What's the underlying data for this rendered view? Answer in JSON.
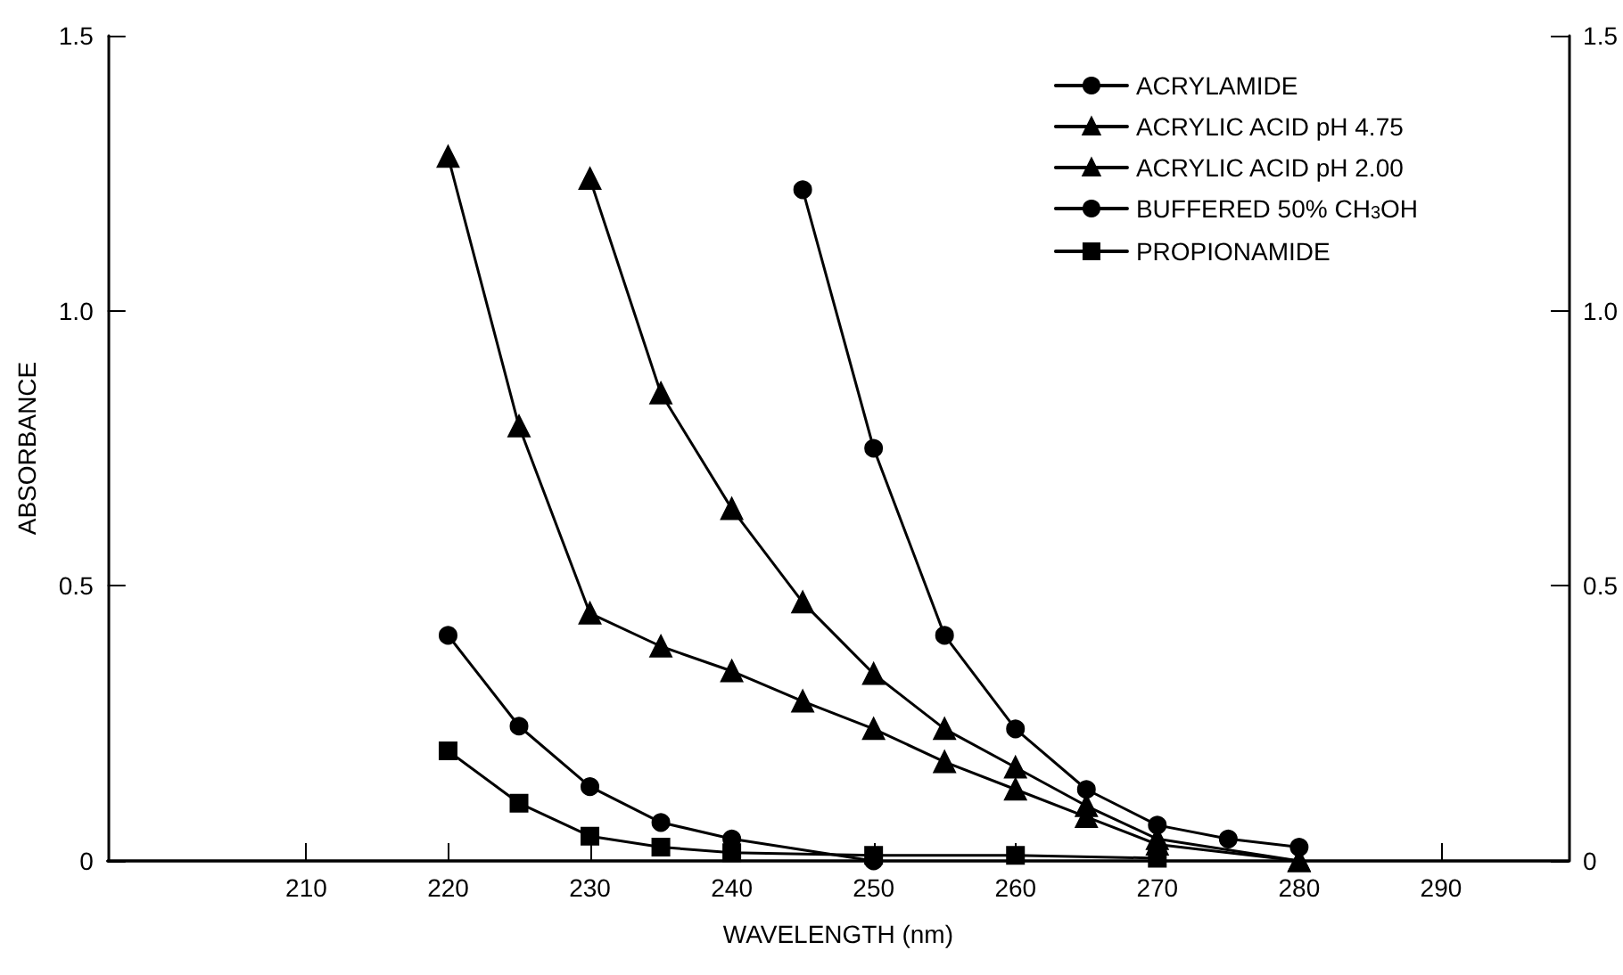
{
  "chart_data": {
    "type": "line",
    "xlabel": "WAVELENGTH (nm)",
    "ylabel": "ABSORBANCE",
    "xlim": [
      196,
      299
    ],
    "xticks": [
      210,
      220,
      230,
      240,
      250,
      260,
      270,
      280,
      290
    ],
    "ylim": [
      0,
      1.5
    ],
    "yticks": [
      0,
      {
        "value": 0.5,
        "label": "0.5"
      },
      {
        "value": 1,
        "label": "1.0"
      },
      1.5
    ],
    "y2lim": [
      0,
      1.5
    ],
    "y2ticks": [
      0,
      {
        "value": 0.5,
        "label": "0.5"
      },
      {
        "value": 1,
        "label": "1.0"
      },
      1.5
    ],
    "grid": false,
    "legend": "top right",
    "line_style": "solid",
    "series": [
      {
        "name": "ACRYLAMIDE",
        "color": "#000000",
        "marker": "circle",
        "x": [
          245,
          250,
          255,
          260,
          265,
          270,
          275,
          280
        ],
        "values": [
          1.22,
          0.75,
          0.41,
          0.24,
          0.13,
          0.065,
          0.04,
          0.025
        ]
      },
      {
        "name": "ACRYLIC ACID pH 4.75",
        "color": "#000000",
        "marker": "triangle",
        "x": [
          230,
          235,
          240,
          245,
          250,
          255,
          260,
          265,
          270,
          280
        ],
        "values": [
          1.24,
          0.85,
          0.64,
          0.47,
          0.34,
          0.24,
          0.17,
          0.1,
          0.04,
          0
        ]
      },
      {
        "name": "ACRYLIC ACID pH 2.00",
        "color": "#000000",
        "marker": "triangle",
        "x": [
          220,
          225,
          230,
          235,
          240,
          245,
          250,
          255,
          260,
          265,
          270,
          280
        ],
        "values": [
          1.28,
          0.79,
          0.45,
          0.39,
          0.345,
          0.29,
          0.24,
          0.18,
          0.13,
          0.08,
          0.03,
          0
        ]
      },
      {
        "name": "BUFFERED 50% CH$_{3}$OH",
        "color": "#000000",
        "marker": "circle",
        "x": [
          220,
          225,
          230,
          235,
          240,
          250
        ],
        "values": [
          0.41,
          0.245,
          0.135,
          0.07,
          0.04,
          0
        ]
      },
      {
        "name": "PROPIONAMIDE",
        "color": "#000000",
        "marker": "square",
        "x": [
          220,
          225,
          230,
          235,
          240,
          250,
          260,
          270
        ],
        "values": [
          0.2,
          0.105,
          0.045,
          0.025,
          0.015,
          0.01,
          0.01,
          0.005
        ]
      }
    ]
  }
}
